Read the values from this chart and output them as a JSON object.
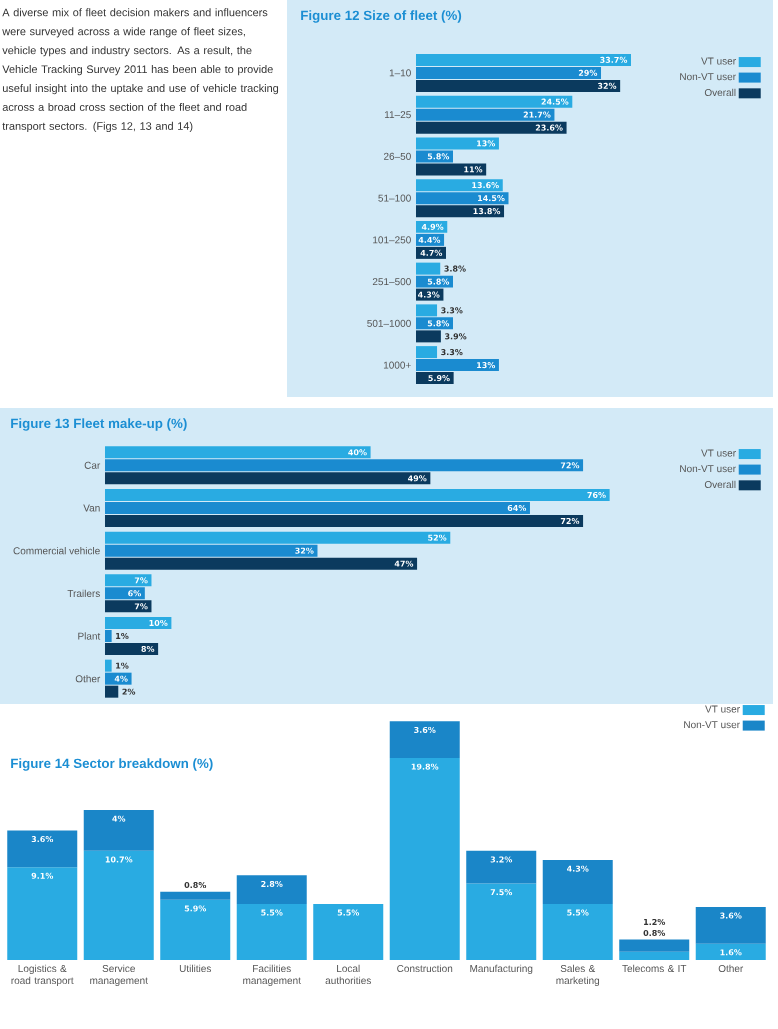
{
  "chart_data": [
    {
      "type": "bar",
      "orientation": "horizontal",
      "title": "Figure 12 Size of fleet (%)",
      "legend": "top right",
      "annotations": [
        "A diverse mix of fleet decision makers and influencers were surveyed across a wide range of fleet sizes, vehicle types and industry sectors. As a result, the Vehicle Tracking Survey 2011 has been able to provide useful insight into the uptake and use of vehicle tracking across a broad cross section of the fleet and road transport sectors. (Figs 12, 13 and 14)"
      ],
      "categories": [
        "1–10",
        "11–25",
        "26–50",
        "51–100",
        "101–250",
        "251–500",
        "501–1000",
        "1000+"
      ],
      "series": [
        {
          "name": "VT user",
          "color": "#29abe2",
          "values": [
            33.7,
            24.5,
            13,
            13.6,
            4.9,
            3.8,
            3.3,
            3.3
          ],
          "value_labels": [
            "33.7%",
            "24.5%",
            "13%",
            "13.6%",
            "4.9%",
            "3.8%",
            "3.3%",
            "3.3%"
          ]
        },
        {
          "name": "Non-VT user",
          "color": "#1a8bd0",
          "values": [
            29,
            21.7,
            5.8,
            14.5,
            4.4,
            5.8,
            5.8,
            13
          ],
          "value_labels": [
            "29%",
            "21.7%",
            "5.8%",
            "14.5%",
            "4.4%",
            "5.8%",
            "5.8%",
            "13%"
          ]
        },
        {
          "name": "Overall",
          "color": "#0b3a5e",
          "values": [
            32,
            23.6,
            11,
            13.8,
            4.7,
            4.3,
            3.9,
            5.9
          ],
          "value_labels": [
            "32%",
            "23.6%",
            "11%",
            "13.8%",
            "4.7%",
            "4.3%",
            "3.9%",
            "5.9%"
          ]
        }
      ]
    },
    {
      "type": "bar",
      "orientation": "horizontal",
      "title": "Figure 13 Fleet make-up (%)",
      "legend": "top right",
      "categories": [
        "Car",
        "Van",
        "Commercial vehicle",
        "Trailers",
        "Plant",
        "Other"
      ],
      "series": [
        {
          "name": "VT user",
          "color": "#29abe2",
          "values": [
            40,
            76,
            52,
            7,
            10,
            1
          ],
          "value_labels": [
            "40%",
            "76%",
            "52%",
            "7%",
            "10%",
            "1%"
          ]
        },
        {
          "name": "Non-VT user",
          "color": "#1a8bd0",
          "values": [
            72,
            64,
            32,
            6,
            1,
            4
          ],
          "value_labels": [
            "72%",
            "64%",
            "32%",
            "6%",
            "1%",
            "4%"
          ]
        },
        {
          "name": "Overall",
          "color": "#0b3a5e",
          "values": [
            49,
            72,
            47,
            7,
            8,
            2
          ],
          "value_labels": [
            "49%",
            "72%",
            "47%",
            "7%",
            "8%",
            "2%"
          ]
        }
      ]
    },
    {
      "type": "bar",
      "stacked": true,
      "title": "Figure 14 Sector breakdown (%)",
      "legend": "top right",
      "categories": [
        "Logistics & road transport",
        "Service management",
        "Utilities",
        "Facilities management",
        "Local authorities",
        "Construction",
        "Manufacturing",
        "Sales & marketing",
        "Telecoms & IT",
        "Other"
      ],
      "series": [
        {
          "name": "VT user",
          "color": "#29abe2",
          "values": [
            9.1,
            10.7,
            5.9,
            5.5,
            5.5,
            19.8,
            7.5,
            5.5,
            0.8,
            1.6
          ],
          "value_labels": [
            "9.1%",
            "10.7%",
            "5.9%",
            "5.5%",
            "5.5%",
            "19.8%",
            "7.5%",
            "5.5%",
            "0.8%",
            "1.6%"
          ]
        },
        {
          "name": "Non-VT user",
          "color": "#1a86c8",
          "values": [
            3.6,
            4,
            0.8,
            2.8,
            null,
            3.6,
            3.2,
            4.3,
            1.2,
            3.6
          ],
          "value_labels": [
            "3.6%",
            "4%",
            "0.8%",
            "2.8%",
            null,
            "3.6%",
            "3.2%",
            "4.3%",
            "1.2%",
            "3.6%"
          ]
        }
      ]
    }
  ]
}
